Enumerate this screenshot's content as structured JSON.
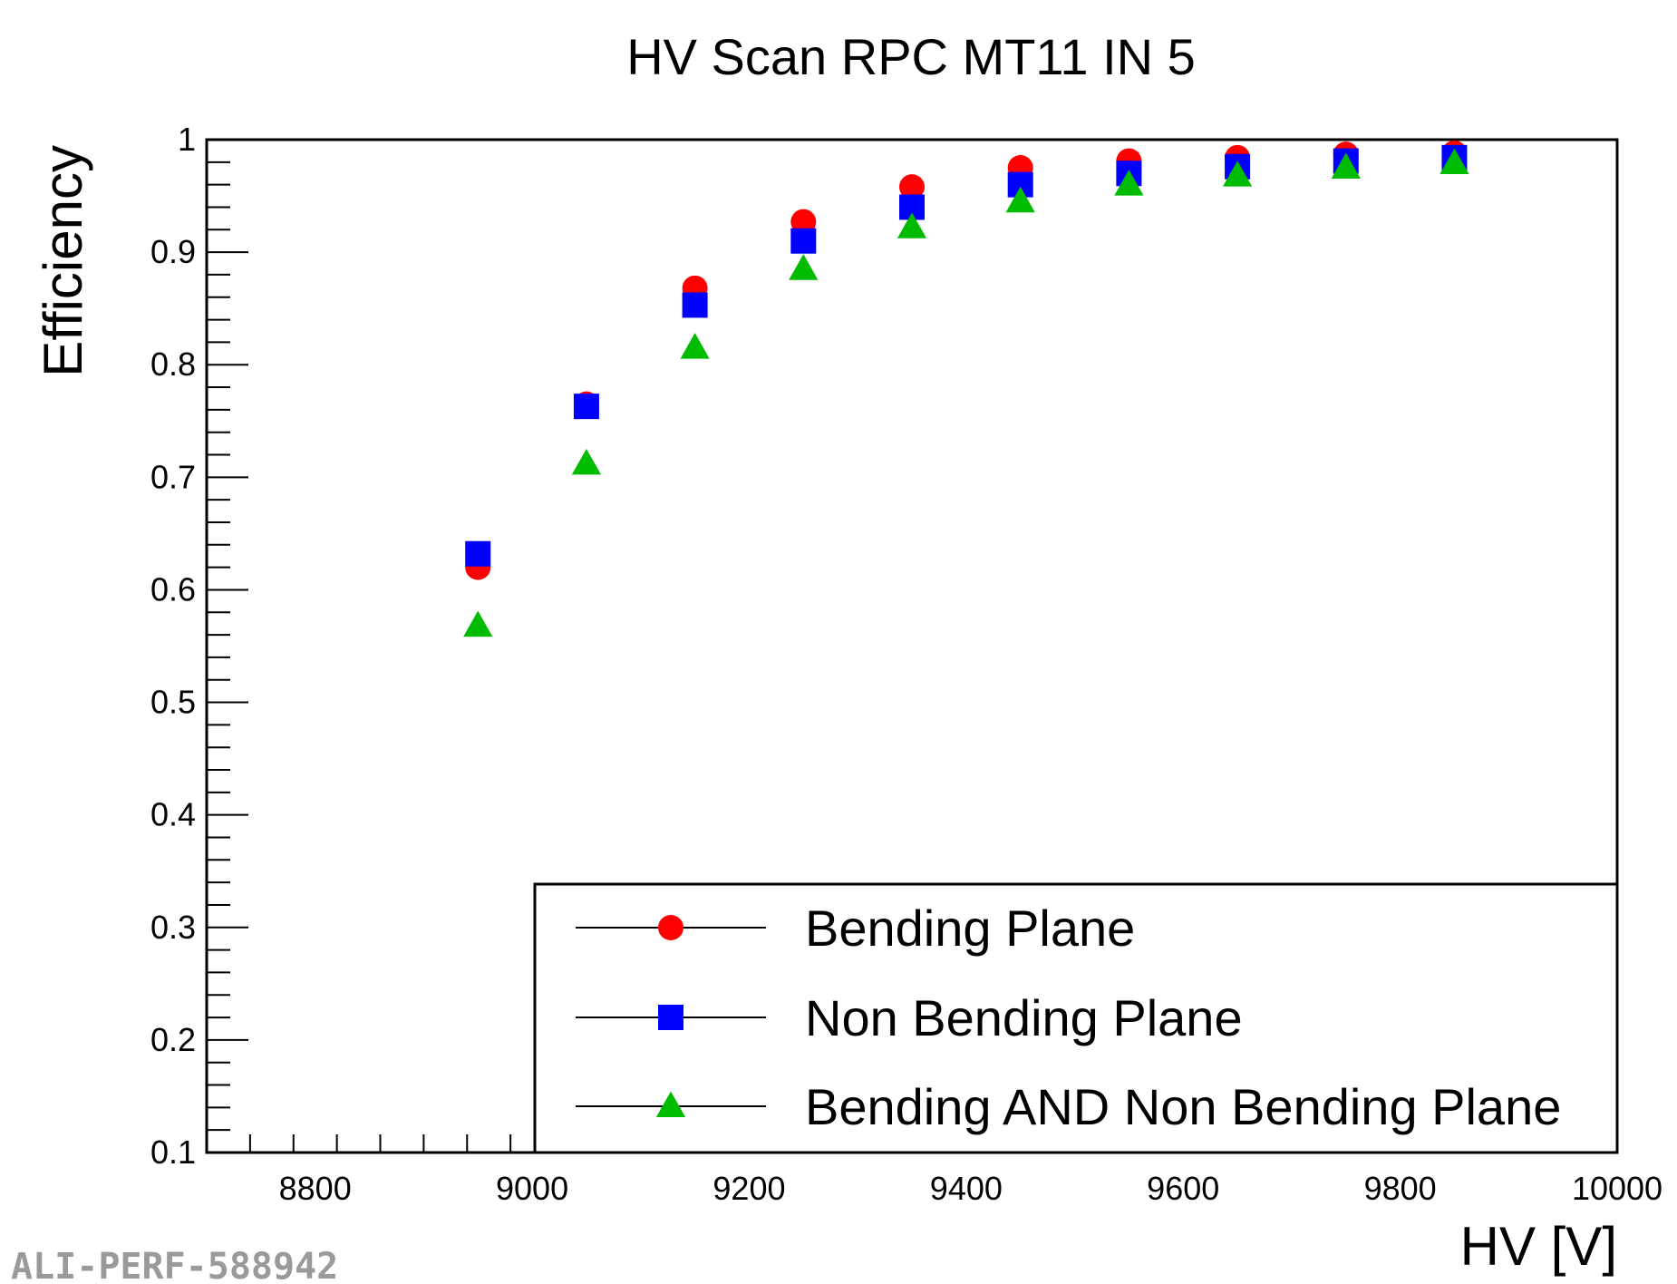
{
  "chart_data": {
    "type": "scatter",
    "title": "HV Scan RPC MT11 IN 5",
    "xlabel": "HV [V]",
    "ylabel": "Efficiency",
    "xlim": [
      8700,
      10000
    ],
    "ylim": [
      0.1,
      1.0
    ],
    "x_ticks": [
      "8800",
      "9000",
      "9200",
      "9400",
      "9600",
      "9800",
      "10000"
    ],
    "y_ticks": [
      "0.1",
      "0.2",
      "0.3",
      "0.4",
      "0.5",
      "0.6",
      "0.7",
      "0.8",
      "0.9",
      "1"
    ],
    "x": [
      8950,
      9050,
      9150,
      9250,
      9350,
      9450,
      9550,
      9650,
      9750,
      9850
    ],
    "series": [
      {
        "name": "Bending Plane",
        "marker": "circle",
        "color": "#ff0000",
        "values": [
          0.62,
          0.765,
          0.868,
          0.927,
          0.958,
          0.975,
          0.981,
          0.984,
          0.987,
          0.988
        ]
      },
      {
        "name": "Non Bending Plane",
        "marker": "square",
        "color": "#0000ff",
        "values": [
          0.632,
          0.763,
          0.853,
          0.91,
          0.94,
          0.96,
          0.97,
          0.976,
          0.981,
          0.984
        ]
      },
      {
        "name": "Bending AND Non Bending Plane",
        "marker": "triangle",
        "color": "#00bb00",
        "values": [
          0.568,
          0.712,
          0.815,
          0.885,
          0.922,
          0.945,
          0.96,
          0.968,
          0.975,
          0.979
        ]
      }
    ],
    "legend_position": "bottom-right"
  },
  "watermark": "ALI-PERF-588942"
}
